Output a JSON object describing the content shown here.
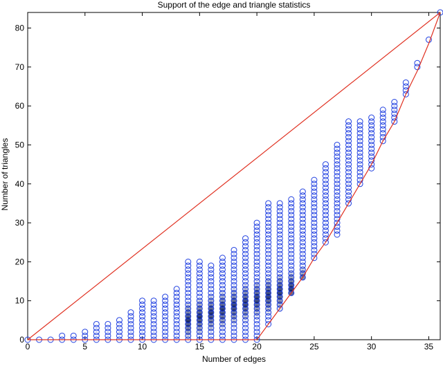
{
  "chart_data": {
    "type": "scatter",
    "title": "Support of the edge and triangle statistics",
    "xlabel": "Number of edges",
    "ylabel": "Number of triangles",
    "xlim": [
      0,
      36
    ],
    "ylim": [
      0,
      84
    ],
    "xticks": [
      0,
      5,
      10,
      15,
      20,
      25,
      30,
      35
    ],
    "yticks": [
      0,
      10,
      20,
      30,
      40,
      50,
      60,
      70,
      80
    ],
    "grid": false,
    "colors": {
      "marker": "#1f3fe0",
      "marker_dense": "#0a1a5a",
      "boundary": "#e03020",
      "axis": "#000000"
    },
    "boundary_lines": [
      {
        "name": "upper",
        "points": [
          [
            0,
            0
          ],
          [
            36,
            84
          ]
        ]
      },
      {
        "name": "lower_flat",
        "points": [
          [
            0,
            0
          ],
          [
            20,
            0
          ]
        ]
      },
      {
        "name": "lower_curve",
        "points": [
          [
            20,
            0
          ],
          [
            21,
            4
          ],
          [
            22,
            8
          ],
          [
            23,
            12
          ],
          [
            24,
            16
          ],
          [
            25,
            21
          ],
          [
            26,
            25
          ],
          [
            27,
            30
          ],
          [
            28,
            35
          ],
          [
            29,
            40
          ],
          [
            30,
            45
          ],
          [
            31,
            51
          ],
          [
            32,
            56
          ],
          [
            33,
            63
          ],
          [
            34,
            69
          ],
          [
            35,
            76
          ],
          [
            36,
            84
          ]
        ]
      }
    ],
    "columns": [
      {
        "x": 0,
        "y": [
          0
        ]
      },
      {
        "x": 1,
        "y": [
          0
        ]
      },
      {
        "x": 2,
        "y": [
          0
        ]
      },
      {
        "x": 3,
        "y_range": [
          0,
          1
        ]
      },
      {
        "x": 4,
        "y_range": [
          0,
          1
        ]
      },
      {
        "x": 5,
        "y_range": [
          0,
          2
        ]
      },
      {
        "x": 6,
        "y_range": [
          0,
          4
        ]
      },
      {
        "x": 7,
        "y_range": [
          0,
          4
        ]
      },
      {
        "x": 8,
        "y_range": [
          0,
          5
        ]
      },
      {
        "x": 9,
        "y_range": [
          0,
          7
        ]
      },
      {
        "x": 10,
        "y_range": [
          0,
          10
        ]
      },
      {
        "x": 11,
        "y_range": [
          0,
          10
        ]
      },
      {
        "x": 12,
        "y_range": [
          0,
          11
        ]
      },
      {
        "x": 13,
        "y_range": [
          0,
          13
        ]
      },
      {
        "x": 14,
        "y_range": [
          0,
          20
        ]
      },
      {
        "x": 15,
        "y_range": [
          0,
          20
        ]
      },
      {
        "x": 16,
        "y_range": [
          0,
          19
        ]
      },
      {
        "x": 17,
        "y_range": [
          0,
          21
        ]
      },
      {
        "x": 18,
        "y_range": [
          0,
          23
        ]
      },
      {
        "x": 19,
        "y_range": [
          0,
          26
        ]
      },
      {
        "x": 20,
        "y_range": [
          0,
          30
        ]
      },
      {
        "x": 21,
        "y_range": [
          4,
          35
        ]
      },
      {
        "x": 22,
        "y_range": [
          8,
          35
        ]
      },
      {
        "x": 23,
        "y_range": [
          12,
          36
        ]
      },
      {
        "x": 24,
        "y_range": [
          16,
          38
        ]
      },
      {
        "x": 25,
        "y_range": [
          21,
          41
        ]
      },
      {
        "x": 26,
        "y_range": [
          25,
          45
        ]
      },
      {
        "x": 27,
        "y_range": [
          27,
          50
        ]
      },
      {
        "x": 28,
        "y_range": [
          35,
          56
        ]
      },
      {
        "x": 29,
        "y_range": [
          40,
          56
        ]
      },
      {
        "x": 30,
        "y_range": [
          44,
          57
        ]
      },
      {
        "x": 31,
        "y_range": [
          51,
          59
        ]
      },
      {
        "x": 32,
        "y_range": [
          56,
          61
        ]
      },
      {
        "x": 33,
        "y_range": [
          63,
          66
        ]
      },
      {
        "x": 34,
        "y_range": [
          70,
          71
        ]
      },
      {
        "x": 35,
        "y": [
          77
        ]
      },
      {
        "x": 36,
        "y": [
          84
        ]
      }
    ],
    "dense_region": {
      "x_range": [
        14,
        25
      ],
      "y_center": [
        5,
        15
      ]
    }
  }
}
